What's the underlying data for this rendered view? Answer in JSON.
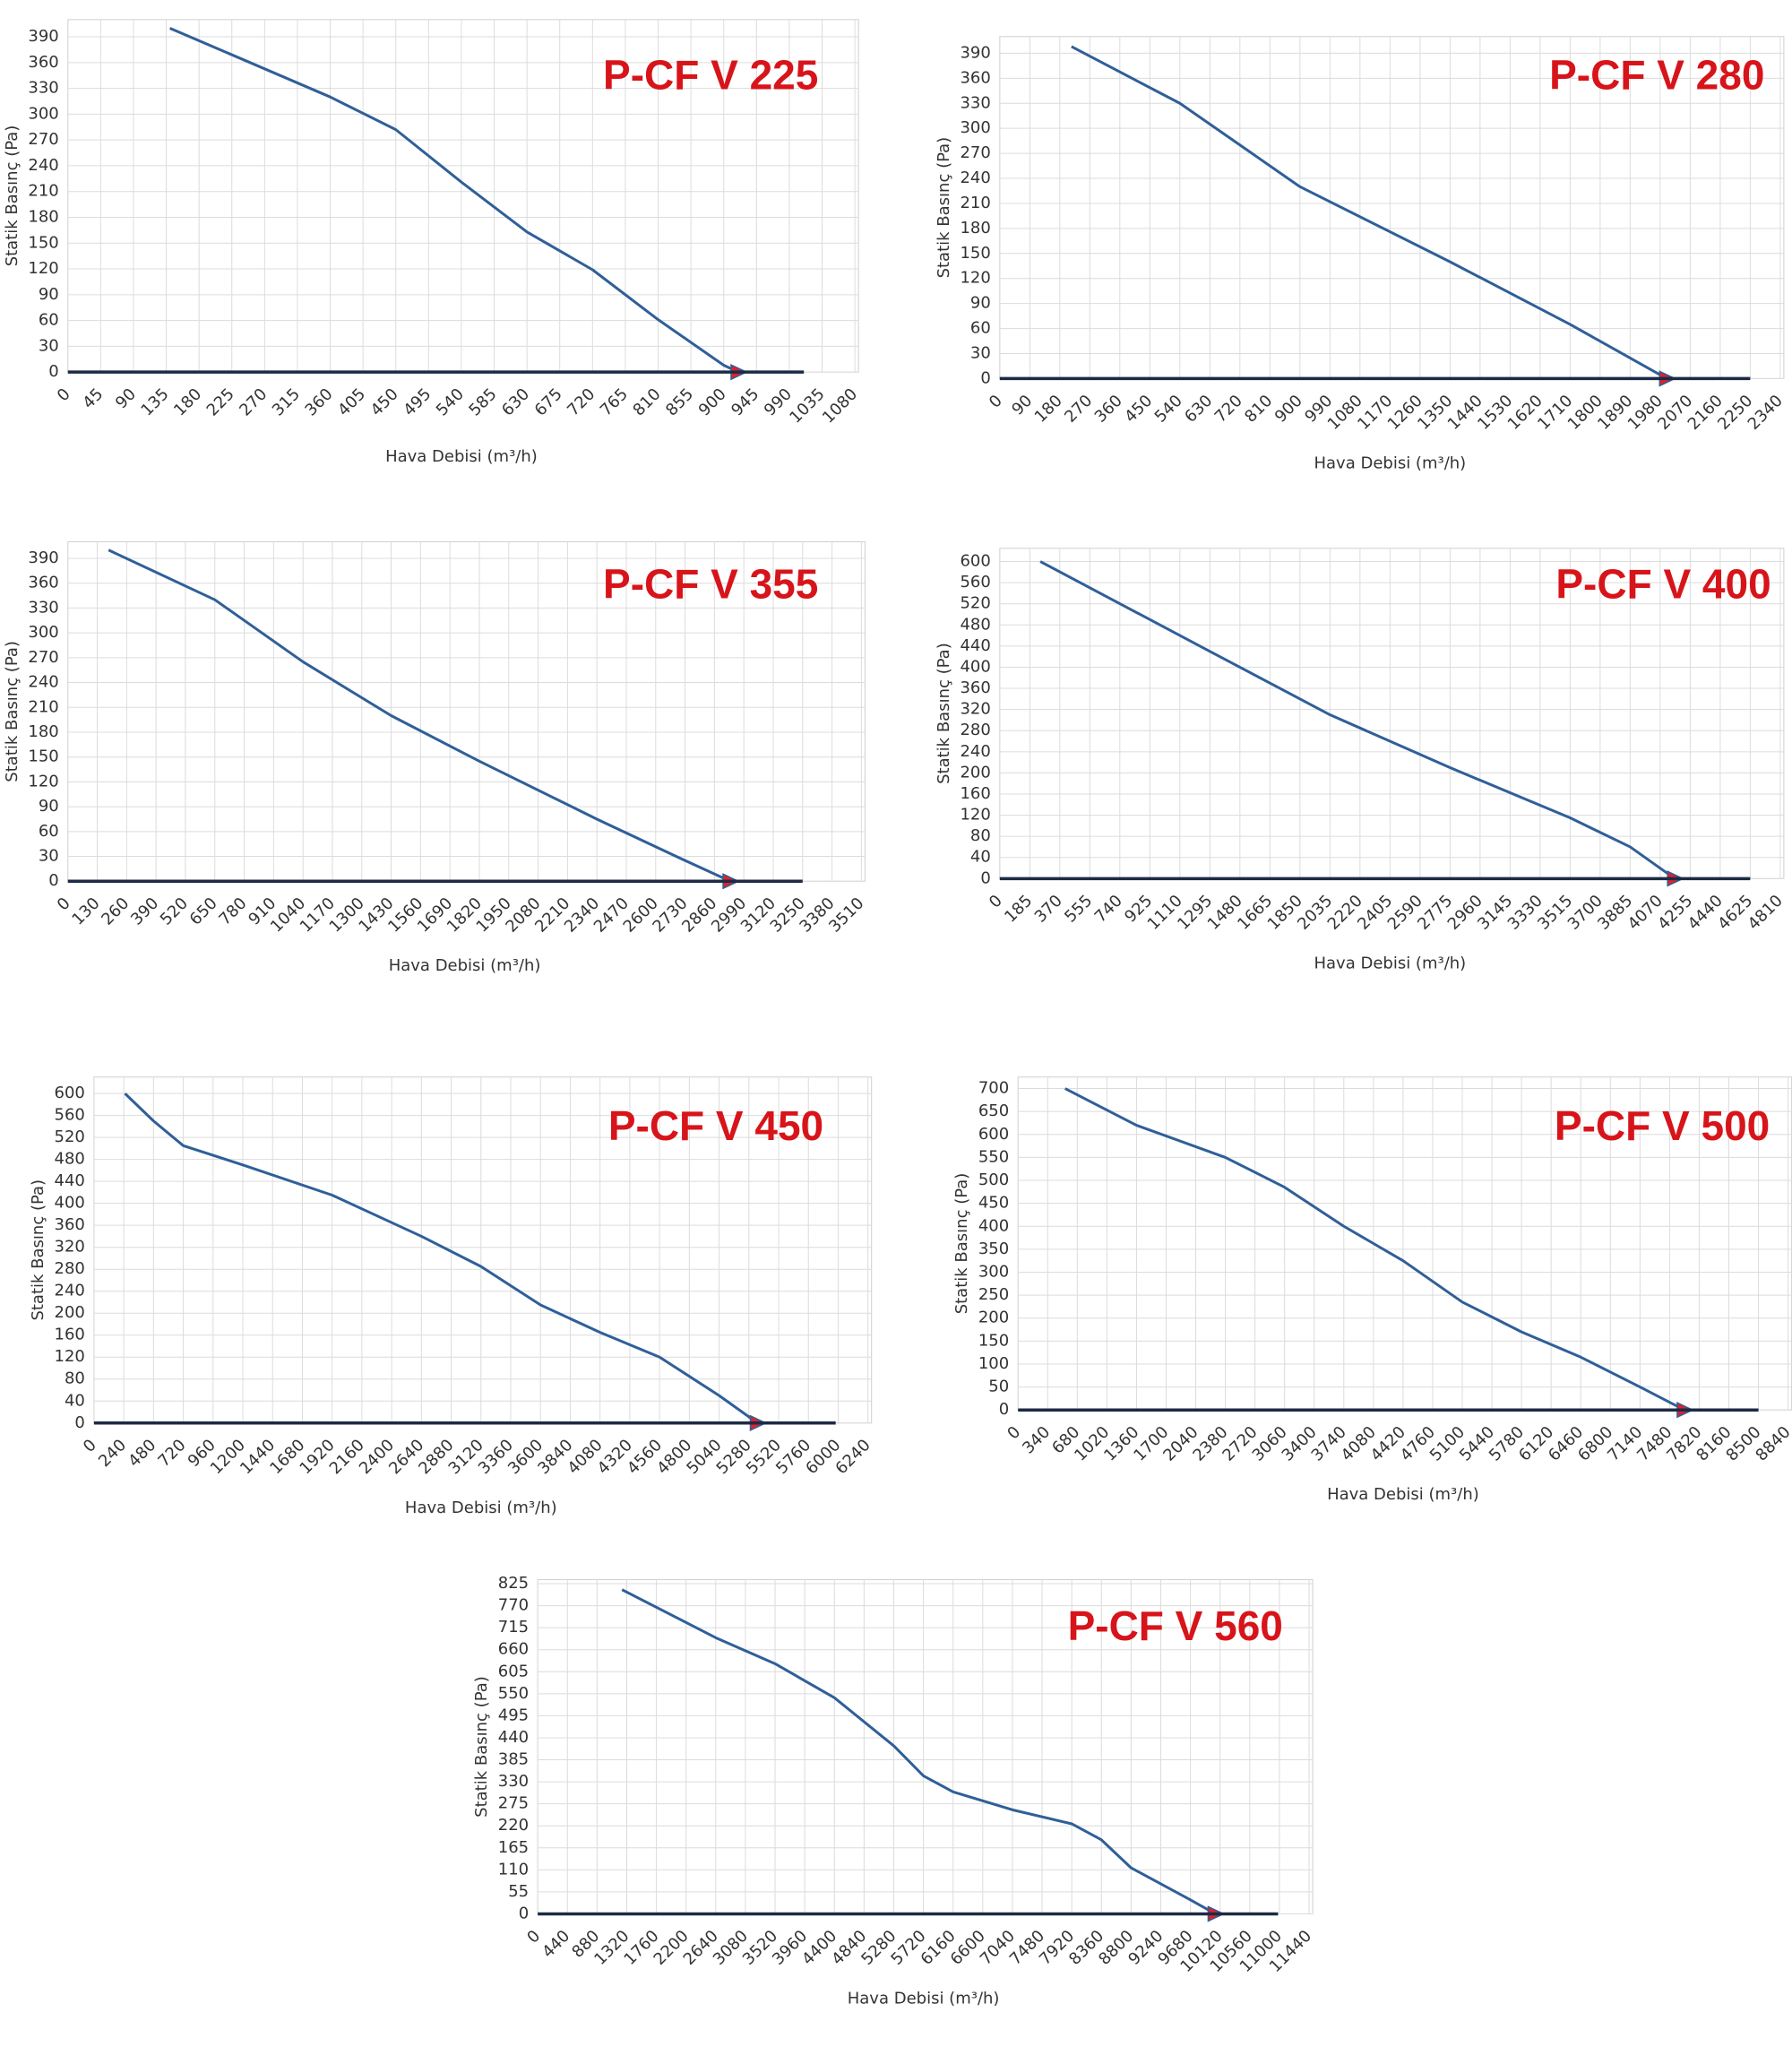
{
  "chart_data": [
    {
      "type": "line",
      "title": "P-CF V 225",
      "x_label": "Hava Debisi (m³/h)",
      "y_label": "Statik Basınç (Pa)",
      "xlim": [
        0,
        1080
      ],
      "ylim": [
        0,
        410
      ],
      "xticks": [
        0,
        45,
        90,
        135,
        180,
        225,
        270,
        315,
        360,
        405,
        450,
        495,
        540,
        585,
        630,
        675,
        720,
        765,
        810,
        855,
        900,
        945,
        990,
        1035,
        1080
      ],
      "yticks": [
        0,
        30,
        60,
        90,
        120,
        150,
        180,
        210,
        240,
        270,
        300,
        330,
        360,
        390
      ],
      "grid": true,
      "series": [
        {
          "color": "#2f5f98",
          "x": [
            140,
            360,
            450,
            540,
            630,
            720,
            810,
            900,
            920
          ],
          "values": [
            400,
            320,
            282,
            221,
            163,
            119,
            61,
            8,
            0
          ],
          "end_marker": true
        },
        {
          "color": "#1c2a44",
          "x": [
            0,
            1010
          ],
          "values": [
            0,
            0
          ]
        }
      ]
    },
    {
      "type": "line",
      "title": "P-CF V 280",
      "x_label": "Hava Debisi (m³/h)",
      "y_label": "Statik Basınç (Pa)",
      "xlim": [
        0,
        2340
      ],
      "ylim": [
        0,
        410
      ],
      "xticks": [
        0,
        90,
        180,
        270,
        360,
        450,
        540,
        630,
        720,
        810,
        900,
        990,
        1080,
        1170,
        1260,
        1350,
        1440,
        1530,
        1620,
        1710,
        1800,
        1890,
        1980,
        2070,
        2160,
        2250,
        2340
      ],
      "yticks": [
        0,
        30,
        60,
        90,
        120,
        150,
        180,
        210,
        240,
        270,
        300,
        330,
        360,
        390
      ],
      "grid": true,
      "series": [
        {
          "color": "#2f5f98",
          "x": [
            215,
            540,
            900,
            1350,
            1710,
            2000
          ],
          "values": [
            398,
            330,
            230,
            140,
            65,
            0
          ],
          "end_marker": true
        },
        {
          "color": "#1c2a44",
          "x": [
            0,
            2250
          ],
          "values": [
            0,
            0
          ]
        }
      ]
    },
    {
      "type": "line",
      "title": "P-CF V 355",
      "x_label": "Hava Debisi (m³/h)",
      "y_label": "Statik Basınç (Pa)",
      "xlim": [
        0,
        3510
      ],
      "ylim": [
        0,
        410
      ],
      "xticks": [
        0,
        130,
        260,
        390,
        520,
        650,
        780,
        910,
        1040,
        1170,
        1300,
        1430,
        1560,
        1690,
        1820,
        1950,
        2080,
        2210,
        2340,
        2470,
        2600,
        2730,
        2860,
        2990,
        3120,
        3250,
        3380,
        3510
      ],
      "yticks": [
        0,
        30,
        60,
        90,
        120,
        150,
        180,
        210,
        240,
        270,
        300,
        330,
        360,
        390
      ],
      "grid": true,
      "series": [
        {
          "color": "#2f5f98",
          "x": [
            180,
            650,
            1040,
            1430,
            1820,
            2340,
            2730,
            2930
          ],
          "values": [
            400,
            340,
            265,
            200,
            145,
            75,
            25,
            0
          ],
          "end_marker": true
        },
        {
          "color": "#1c2a44",
          "x": [
            0,
            3250
          ],
          "values": [
            0,
            0
          ]
        }
      ]
    },
    {
      "type": "line",
      "title": "P-CF V 400",
      "x_label": "Hava Debisi (m³/h)",
      "y_label": "Statik Basınç (Pa)",
      "xlim": [
        0,
        4810
      ],
      "ylim": [
        0,
        625
      ],
      "xticks": [
        0,
        185,
        370,
        555,
        740,
        925,
        1110,
        1295,
        1480,
        1665,
        1850,
        2035,
        2220,
        2405,
        2590,
        2775,
        2960,
        3145,
        3330,
        3515,
        3700,
        3885,
        4070,
        4255,
        4440,
        4625,
        4810
      ],
      "yticks": [
        0,
        40,
        80,
        120,
        160,
        200,
        240,
        280,
        320,
        360,
        400,
        440,
        480,
        520,
        560,
        600
      ],
      "grid": true,
      "series": [
        {
          "color": "#2f5f98",
          "x": [
            250,
            1295,
            2035,
            2775,
            3515,
            3885,
            4160
          ],
          "values": [
            600,
            430,
            310,
            210,
            115,
            60,
            0
          ],
          "end_marker": true
        },
        {
          "color": "#1c2a44",
          "x": [
            0,
            4625
          ],
          "values": [
            0,
            0
          ]
        }
      ]
    },
    {
      "type": "line",
      "title": "P-CF V 450",
      "x_label": "Hava Debisi (m³/h)",
      "y_label": "Statik Basınç (Pa)",
      "xlim": [
        0,
        6240
      ],
      "ylim": [
        0,
        630
      ],
      "xticks": [
        0,
        240,
        480,
        720,
        960,
        1200,
        1440,
        1680,
        1920,
        2160,
        2400,
        2640,
        2880,
        3120,
        3360,
        3600,
        3840,
        4080,
        4320,
        4560,
        4800,
        5040,
        5280,
        5520,
        5760,
        6000,
        6240
      ],
      "yticks": [
        0,
        40,
        80,
        120,
        160,
        200,
        240,
        280,
        320,
        360,
        400,
        440,
        480,
        520,
        560,
        600
      ],
      "grid": true,
      "series": [
        {
          "color": "#2f5f98",
          "x": [
            250,
            480,
            720,
            1200,
            1920,
            2640,
            3120,
            3600,
            4080,
            4560,
            5040,
            5350
          ],
          "values": [
            600,
            550,
            505,
            470,
            415,
            340,
            285,
            215,
            165,
            120,
            50,
            0
          ],
          "end_marker": true
        },
        {
          "color": "#1c2a44",
          "x": [
            0,
            5980
          ],
          "values": [
            0,
            0
          ]
        }
      ]
    },
    {
      "type": "line",
      "title": "P-CF V 500",
      "x_label": "Hava Debisi (m³/h)",
      "y_label": "Statik Basınç (Pa)",
      "xlim": [
        0,
        8840
      ],
      "ylim": [
        0,
        725
      ],
      "xticks": [
        0,
        340,
        680,
        1020,
        1360,
        1700,
        2040,
        2380,
        2720,
        3060,
        3400,
        3740,
        4080,
        4420,
        4760,
        5100,
        5440,
        5780,
        6120,
        6460,
        6800,
        7140,
        7480,
        7820,
        8160,
        8500,
        8840
      ],
      "yticks": [
        0,
        50,
        100,
        150,
        200,
        250,
        300,
        350,
        400,
        450,
        500,
        550,
        600,
        650,
        700
      ],
      "grid": true,
      "series": [
        {
          "color": "#2f5f98",
          "x": [
            540,
            1360,
            2380,
            3060,
            3740,
            4420,
            5100,
            5780,
            6460,
            7140,
            7650
          ],
          "values": [
            700,
            620,
            550,
            485,
            400,
            325,
            235,
            170,
            115,
            50,
            0
          ],
          "end_marker": true
        },
        {
          "color": "#1c2a44",
          "x": [
            0,
            8500
          ],
          "values": [
            0,
            0
          ]
        }
      ]
    },
    {
      "type": "line",
      "title": "P-CF V 560",
      "x_label": "Hava Debisi (m³/h)",
      "y_label": "Statik Basınç (Pa)",
      "xlim": [
        0,
        11440
      ],
      "ylim": [
        0,
        835
      ],
      "xticks": [
        0,
        440,
        880,
        1320,
        1760,
        2200,
        2640,
        3080,
        3520,
        3960,
        4400,
        4840,
        5280,
        5720,
        6160,
        6600,
        7040,
        7480,
        7920,
        8360,
        8800,
        9240,
        9680,
        10120,
        10560,
        11000,
        11440
      ],
      "yticks": [
        0,
        55,
        110,
        165,
        220,
        275,
        330,
        385,
        440,
        495,
        550,
        605,
        660,
        715,
        770,
        825
      ],
      "grid": true,
      "series": [
        {
          "color": "#2f5f98",
          "x": [
            1250,
            2640,
            3520,
            4400,
            5280,
            5720,
            6160,
            7040,
            7920,
            8360,
            8800,
            9680,
            10050
          ],
          "values": [
            810,
            690,
            625,
            540,
            420,
            345,
            305,
            260,
            225,
            185,
            115,
            35,
            0
          ],
          "end_marker": true
        },
        {
          "color": "#1c2a44",
          "x": [
            0,
            10980
          ],
          "values": [
            0,
            0
          ]
        }
      ]
    }
  ]
}
